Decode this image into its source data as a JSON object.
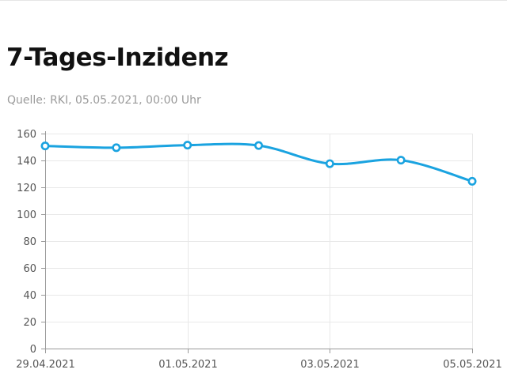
{
  "header": {
    "title": "7-Tages-Inzidenz",
    "source": "Quelle: RKI, 05.05.2021, 00:00 Uhr"
  },
  "colors": {
    "line": "#1aa3e0",
    "grid": "#e8e8e8",
    "axis": "#999999",
    "text": "#555555"
  },
  "chart_data": {
    "type": "line",
    "title": "7-Tages-Inzidenz",
    "subtitle": "Quelle: RKI, 05.05.2021, 00:00 Uhr",
    "x": [
      "29.04.2021",
      "30.04.2021",
      "01.05.2021",
      "02.05.2021",
      "03.05.2021",
      "04.05.2021",
      "05.05.2021"
    ],
    "x_tick_labels": [
      "29.04.2021",
      "01.05.2021",
      "03.05.2021",
      "05.05.2021"
    ],
    "series": [
      {
        "values": [
          150.8,
          149.5,
          151.4,
          151.1,
          137.6,
          140.2,
          124.5
        ]
      }
    ],
    "y_ticks": [
      0,
      20,
      40,
      60,
      80,
      100,
      120,
      140,
      160
    ],
    "ylim": [
      0,
      160
    ],
    "grid": true,
    "legend": "none",
    "smooth": true
  }
}
